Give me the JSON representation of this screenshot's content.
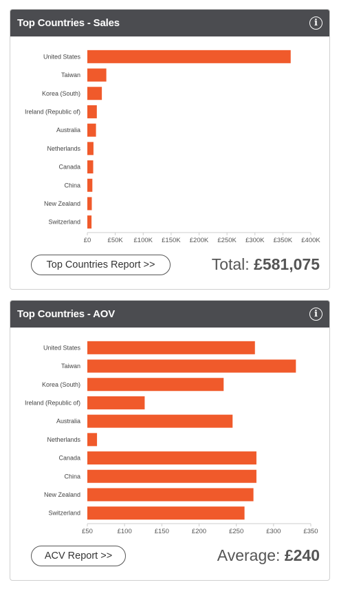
{
  "panels": [
    {
      "title": "Top Countries - Sales",
      "button_label": "Top Countries Report >>",
      "summary_label": "Total:",
      "summary_value": "£581,075",
      "chart_data": {
        "type": "bar",
        "orientation": "horizontal",
        "title": "",
        "categories": [
          "United States",
          "Taiwan",
          "Korea (South)",
          "Ireland (Republic of)",
          "Australia",
          "Netherlands",
          "Canada",
          "China",
          "New Zealand",
          "Switzerland"
        ],
        "values": [
          364000,
          34000,
          26000,
          17000,
          15500,
          11000,
          10500,
          9000,
          8000,
          7500
        ],
        "xlim": [
          0,
          400000
        ],
        "xticks": [
          0,
          50000,
          100000,
          150000,
          200000,
          250000,
          300000,
          350000,
          400000
        ],
        "xtick_labels": [
          "£0",
          "£50K",
          "£100K",
          "£150K",
          "£200K",
          "£250K",
          "£300K",
          "£350K",
          "£400K"
        ],
        "color": "#f05a2b",
        "grid": false
      }
    },
    {
      "title": "Top Countries - AOV",
      "button_label": "ACV Report >>",
      "summary_label": "Average:",
      "summary_value": "£240",
      "chart_data": {
        "type": "bar",
        "orientation": "horizontal",
        "title": "",
        "categories": [
          "United States",
          "Taiwan",
          "Korea (South)",
          "Ireland (Republic of)",
          "Australia",
          "Netherlands",
          "Canada",
          "China",
          "New Zealand",
          "Switzerland"
        ],
        "values": [
          275,
          330,
          233,
          127,
          245,
          63,
          277,
          277,
          273,
          261
        ],
        "xlim": [
          50,
          350
        ],
        "xticks": [
          50,
          100,
          150,
          200,
          250,
          300,
          350
        ],
        "xtick_labels": [
          "£50",
          "£100",
          "£150",
          "£200",
          "£250",
          "£300",
          "£350"
        ],
        "color": "#f05a2b",
        "grid": false
      }
    }
  ]
}
